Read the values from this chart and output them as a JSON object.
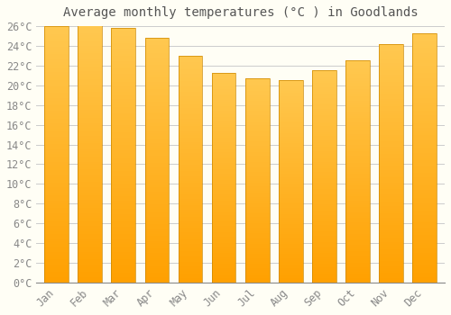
{
  "title": "Average monthly temperatures (°C ) in Goodlands",
  "months": [
    "Jan",
    "Feb",
    "Mar",
    "Apr",
    "May",
    "Jun",
    "Jul",
    "Aug",
    "Sep",
    "Oct",
    "Nov",
    "Dec"
  ],
  "values": [
    26.0,
    26.1,
    25.8,
    24.8,
    23.0,
    21.3,
    20.7,
    20.5,
    21.5,
    22.5,
    24.2,
    25.3
  ],
  "bar_color_top": "#FFB732",
  "bar_color_bottom": "#FFA000",
  "bar_edge_color": "#CC8800",
  "background_color": "#FFFEF5",
  "grid_color": "#CCCCCC",
  "ylim": [
    0,
    26
  ],
  "ytick_step": 2,
  "title_fontsize": 10,
  "tick_fontsize": 8.5,
  "font_family": "monospace"
}
